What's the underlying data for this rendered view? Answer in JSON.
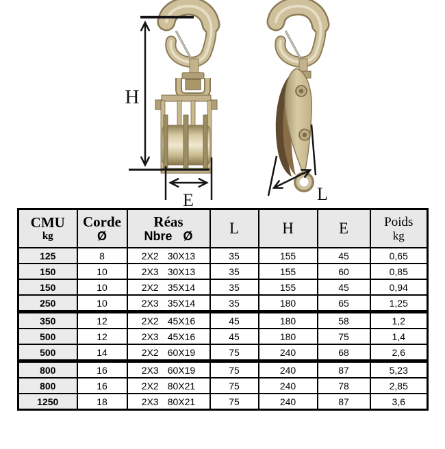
{
  "figure": {
    "labels": {
      "h": "H",
      "e": "E",
      "l": "L"
    }
  },
  "colors": {
    "background": "#ffffff",
    "table_border": "#000000",
    "header_bg": "#e8e8e8",
    "first_col_bg": "#ebebeb",
    "dimension_lines": "#141414",
    "brass": "#cfc09c",
    "brass_dark": "#8a7a55",
    "sheave_brown": "#5f4a30"
  },
  "table": {
    "headers": [
      {
        "line1": "CMU",
        "line2": "kg"
      },
      {
        "line1": "Corde",
        "line2": "Ø"
      },
      {
        "line1": "Réas",
        "line2": "Nbre Ø"
      },
      {
        "line1": "L",
        "line2": ""
      },
      {
        "line1": "H",
        "line2": ""
      },
      {
        "line1": "E",
        "line2": ""
      },
      {
        "line1": "Poids",
        "line2": "kg"
      }
    ],
    "rows": [
      {
        "cmu": "125",
        "corde": "8",
        "reas_nbre": "2X2",
        "reas_dim": "30X13",
        "l": "35",
        "h": "155",
        "e": "45",
        "poids": "0,65",
        "group_end": false
      },
      {
        "cmu": "150",
        "corde": "10",
        "reas_nbre": "2X3",
        "reas_dim": "30X13",
        "l": "35",
        "h": "155",
        "e": "60",
        "poids": "0,85",
        "group_end": false
      },
      {
        "cmu": "150",
        "corde": "10",
        "reas_nbre": "2X2",
        "reas_dim": "35X14",
        "l": "35",
        "h": "155",
        "e": "45",
        "poids": "0,94",
        "group_end": false
      },
      {
        "cmu": "250",
        "corde": "10",
        "reas_nbre": "2X3",
        "reas_dim": "35X14",
        "l": "35",
        "h": "180",
        "e": "65",
        "poids": "1,25",
        "group_end": true
      },
      {
        "cmu": "350",
        "corde": "12",
        "reas_nbre": "2X2",
        "reas_dim": "45X16",
        "l": "45",
        "h": "180",
        "e": "58",
        "poids": "1,2",
        "group_end": false
      },
      {
        "cmu": "500",
        "corde": "12",
        "reas_nbre": "2X3",
        "reas_dim": "45X16",
        "l": "45",
        "h": "180",
        "e": "75",
        "poids": "1,4",
        "group_end": false
      },
      {
        "cmu": "500",
        "corde": "14",
        "reas_nbre": "2X2",
        "reas_dim": "60X19",
        "l": "75",
        "h": "240",
        "e": "68",
        "poids": "2,6",
        "group_end": true
      },
      {
        "cmu": "800",
        "corde": "16",
        "reas_nbre": "2X3",
        "reas_dim": "60X19",
        "l": "75",
        "h": "240",
        "e": "87",
        "poids": "5,23",
        "group_end": false
      },
      {
        "cmu": "800",
        "corde": "16",
        "reas_nbre": "2X2",
        "reas_dim": "80X21",
        "l": "75",
        "h": "240",
        "e": "78",
        "poids": "2,85",
        "group_end": false
      },
      {
        "cmu": "1250",
        "corde": "18",
        "reas_nbre": "2X3",
        "reas_dim": "80X21",
        "l": "75",
        "h": "240",
        "e": "87",
        "poids": "3,6",
        "group_end": false
      }
    ]
  }
}
